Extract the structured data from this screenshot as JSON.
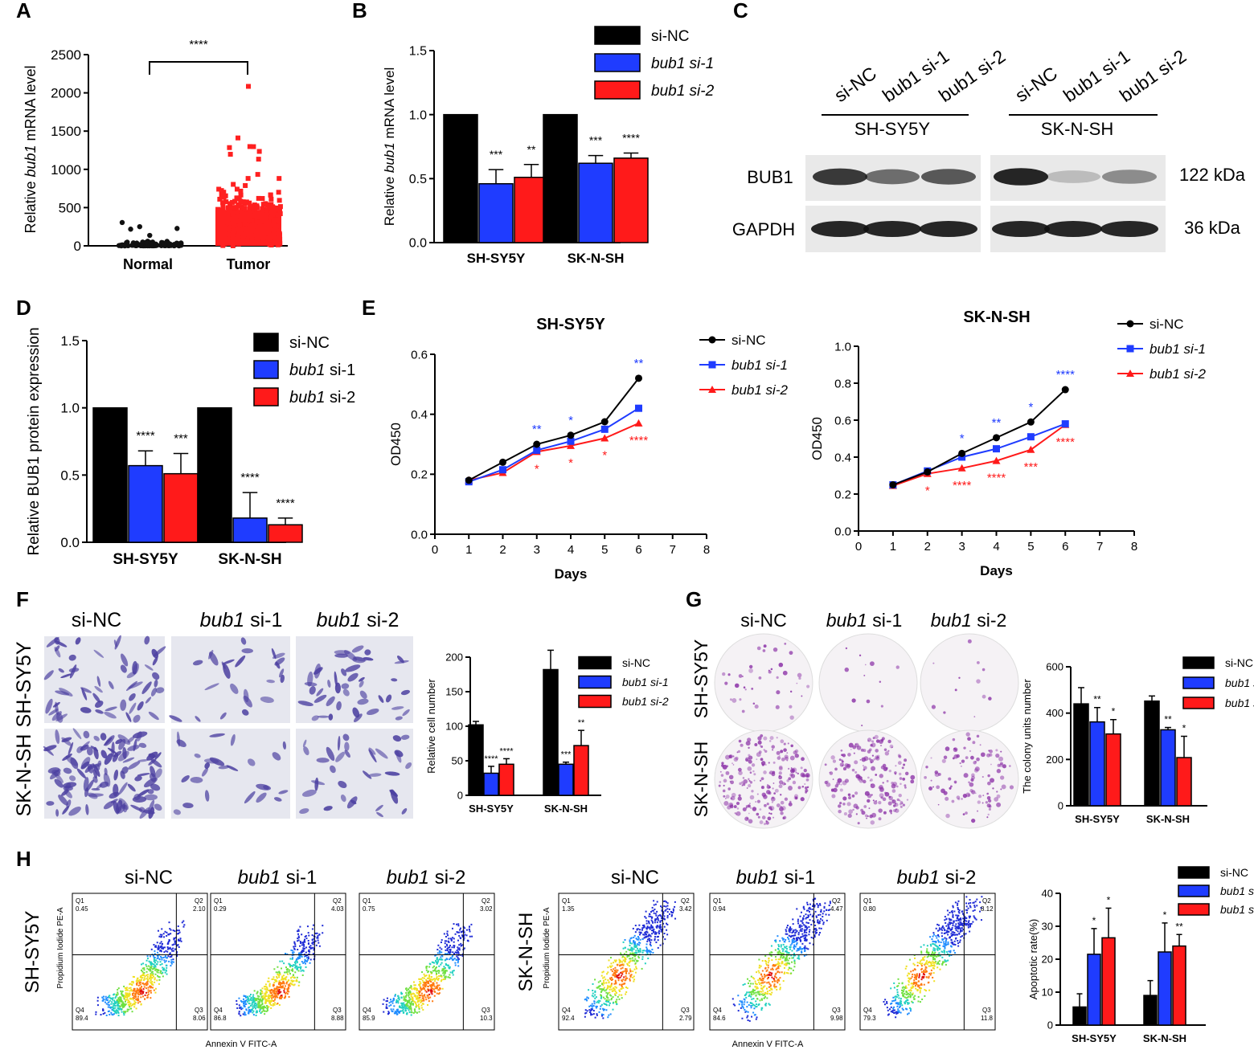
{
  "colors": {
    "black": "#000000",
    "blue": "#1f3cff",
    "red": "#ff1a1a",
    "tumor": "#ff2020"
  },
  "panel_labels": [
    "A",
    "B",
    "C",
    "D",
    "E",
    "F",
    "G",
    "H"
  ],
  "chart_data": [
    {
      "id": "A",
      "type": "scatter",
      "ylabel": "Relative bub1 mRNA level",
      "categories": [
        "Normal",
        "Tumor"
      ],
      "bar_means": [
        15,
        470
      ],
      "yticks": [
        0,
        500,
        1000,
        1500,
        2000,
        2500
      ],
      "ylim": [
        0,
        2500
      ],
      "significance": "****"
    },
    {
      "id": "B",
      "type": "bar",
      "ylabel": "Relative bub1 mRNA level",
      "categories": [
        "SH-SY5Y",
        "SK-N-SH"
      ],
      "series": [
        {
          "name": "si-NC",
          "values": [
            1.0,
            1.0
          ],
          "errors": [
            0,
            0
          ]
        },
        {
          "name": "bub1 si-1",
          "values": [
            0.46,
            0.62
          ],
          "errors": [
            0.11,
            0.06
          ]
        },
        {
          "name": "bub1 si-2",
          "values": [
            0.51,
            0.66
          ],
          "errors": [
            0.1,
            0.04
          ]
        }
      ],
      "stars": [
        [
          "",
          "***",
          "**"
        ],
        [
          "",
          "***",
          "****"
        ]
      ],
      "yticks": [
        "0.0",
        "0.5",
        "1.0",
        "1.5"
      ],
      "ylim": [
        0,
        1.5
      ]
    },
    {
      "id": "D",
      "type": "bar",
      "ylabel": "Relative BUB1 protein expression",
      "categories": [
        "SH-SY5Y",
        "SK-N-SH"
      ],
      "series": [
        {
          "name": "si-NC",
          "values": [
            1.0,
            1.0
          ],
          "errors": [
            0,
            0
          ]
        },
        {
          "name": "bub1 si-1",
          "values": [
            0.57,
            0.18
          ],
          "errors": [
            0.11,
            0.19
          ]
        },
        {
          "name": "bub1 si-2",
          "values": [
            0.51,
            0.13
          ],
          "errors": [
            0.15,
            0.05
          ]
        }
      ],
      "stars": [
        [
          "",
          "****",
          "***"
        ],
        [
          "",
          "****",
          "****"
        ]
      ],
      "yticks": [
        "0.0",
        "0.5",
        "1.0",
        "1.5"
      ],
      "ylim": [
        0,
        1.5
      ]
    },
    {
      "id": "E1",
      "type": "line",
      "title": "SH-SY5Y",
      "xlabel": "Days",
      "ylabel": "OD450",
      "x": [
        1,
        2,
        3,
        4,
        5,
        6
      ],
      "series": [
        {
          "name": "si-NC",
          "values": [
            0.18,
            0.24,
            0.3,
            0.33,
            0.375,
            0.52
          ]
        },
        {
          "name": "bub1 si-1",
          "values": [
            0.175,
            0.215,
            0.28,
            0.31,
            0.35,
            0.42
          ]
        },
        {
          "name": "bub1 si-2",
          "values": [
            0.18,
            0.205,
            0.275,
            0.295,
            0.32,
            0.37
          ]
        }
      ],
      "stars_si1": [
        "",
        "",
        "**",
        "*",
        "",
        "**"
      ],
      "stars_si2": [
        "",
        "",
        "*",
        "*",
        "*",
        "****"
      ],
      "xticks": [
        "0",
        "1",
        "2",
        "3",
        "4",
        "5",
        "6",
        "7",
        "8"
      ],
      "yticks": [
        "0.0",
        "0.2",
        "0.4",
        "0.6"
      ],
      "ylim": [
        0,
        0.6
      ],
      "xlim": [
        0,
        8
      ]
    },
    {
      "id": "E2",
      "type": "line",
      "title": "SK-N-SH",
      "xlabel": "Days",
      "ylabel": "OD450",
      "x": [
        1,
        2,
        3,
        4,
        5,
        6
      ],
      "series": [
        {
          "name": "si-NC",
          "values": [
            0.25,
            0.32,
            0.42,
            0.505,
            0.59,
            0.765
          ]
        },
        {
          "name": "bub1 si-1",
          "values": [
            0.25,
            0.325,
            0.4,
            0.445,
            0.51,
            0.58
          ]
        },
        {
          "name": "bub1 si-2",
          "values": [
            0.245,
            0.31,
            0.34,
            0.38,
            0.44,
            0.575
          ]
        }
      ],
      "stars_si1": [
        "",
        "",
        "*",
        "**",
        "*",
        "****"
      ],
      "stars_si2": [
        "",
        "*",
        "****",
        "****",
        "***",
        "****"
      ],
      "xticks": [
        "0",
        "1",
        "2",
        "3",
        "4",
        "5",
        "6",
        "7",
        "8"
      ],
      "yticks": [
        "0.0",
        "0.2",
        "0.4",
        "0.6",
        "0.8",
        "1.0"
      ],
      "ylim": [
        0,
        1.0
      ],
      "xlim": [
        0,
        8
      ]
    },
    {
      "id": "F",
      "type": "bar",
      "ylabel": "Relative cell number",
      "categories": [
        "SH-SY5Y",
        "SK-N-SH"
      ],
      "series": [
        {
          "name": "si-NC",
          "values": [
            102,
            182
          ],
          "errors": [
            5,
            28
          ]
        },
        {
          "name": "bub1 si-1",
          "values": [
            32,
            45
          ],
          "errors": [
            10,
            3
          ]
        },
        {
          "name": "bub1 si-2",
          "values": [
            45,
            72
          ],
          "errors": [
            8,
            22
          ]
        }
      ],
      "stars": [
        [
          "",
          "****",
          "****"
        ],
        [
          "",
          "***",
          "**"
        ]
      ],
      "yticks": [
        "0",
        "50",
        "100",
        "150",
        "200"
      ],
      "ylim": [
        0,
        200
      ]
    },
    {
      "id": "G",
      "type": "bar",
      "ylabel": "The colony units number",
      "categories": [
        "SH-SY5Y",
        "SK-N-SH"
      ],
      "series": [
        {
          "name": "si-NC",
          "values": [
            440,
            452
          ],
          "errors": [
            70,
            22
          ]
        },
        {
          "name": "bub1 si-1",
          "values": [
            362,
            328
          ],
          "errors": [
            62,
            10
          ]
        },
        {
          "name": "bub1 si-2",
          "values": [
            310,
            208
          ],
          "errors": [
            62,
            92
          ]
        }
      ],
      "stars": [
        [
          "",
          "**",
          "*"
        ],
        [
          "",
          "**",
          "*"
        ]
      ],
      "yticks": [
        "0",
        "200",
        "400",
        "600"
      ],
      "ylim": [
        0,
        600
      ]
    },
    {
      "id": "H",
      "type": "bar",
      "ylabel": "Apoptotic rate(%)",
      "categories": [
        "SH-SY5Y",
        "SK-N-SH"
      ],
      "series": [
        {
          "name": "si-NC",
          "values": [
            5.5,
            9
          ],
          "errors": [
            4,
            4.5
          ]
        },
        {
          "name": "bub1 si-1",
          "values": [
            21.5,
            22.2
          ],
          "errors": [
            7.8,
            8.8
          ]
        },
        {
          "name": "bub1 si-2",
          "values": [
            26.5,
            24
          ],
          "errors": [
            9,
            3.5
          ]
        }
      ],
      "stars": [
        [
          "",
          "*",
          "*"
        ],
        [
          "",
          "*",
          "**"
        ]
      ],
      "yticks": [
        "0",
        "10",
        "20",
        "30",
        "40"
      ],
      "ylim": [
        0,
        40
      ]
    }
  ],
  "legend": {
    "nc": "si-NC",
    "si1_prefix": "bub1",
    "si1_suffix": " si-1",
    "si2_prefix": "bub1",
    "si2_suffix": " si-2"
  },
  "western": {
    "lanes": [
      "si-NC",
      "bub1 si-1",
      "bub1 si-2"
    ],
    "groups": [
      "SH-SY5Y",
      "SK-N-SH"
    ],
    "rows": [
      {
        "name": "BUB1",
        "size": "122 kDa"
      },
      {
        "name": "GAPDH",
        "size": "36 kDa"
      }
    ]
  },
  "transwell": {
    "cols": [
      "si-NC",
      "bub1 si-1",
      "bub1 si-2"
    ],
    "rows": [
      "SH-SY5Y",
      "SK-N-SH"
    ]
  },
  "flow": {
    "xlabel": "Annexin V FITC-A",
    "ylabel": "Propidium Iodide PE-A",
    "rows": [
      "SH-SY5Y",
      "SK-N-SH"
    ],
    "cols": [
      "si-NC",
      "bub1 si-1",
      "bub1 si-2"
    ],
    "quadrants": [
      {
        "q1": "0.45",
        "q2": "2.10",
        "q3": "8.06",
        "q4": "89.4"
      },
      {
        "q1": "0.29",
        "q2": "4.03",
        "q3": "8.88",
        "q4": "86.8"
      },
      {
        "q1": "0.75",
        "q2": "3.02",
        "q3": "10.3",
        "q4": "85.9"
      },
      {
        "q1": "1.35",
        "q2": "3.42",
        "q3": "2.79",
        "q4": "92.4"
      },
      {
        "q1": "0.94",
        "q2": "4.47",
        "q3": "9.98",
        "q4": "84.6"
      },
      {
        "q1": "0.80",
        "q2": "8.12",
        "q3": "11.8",
        "q4": "79.3"
      }
    ]
  }
}
